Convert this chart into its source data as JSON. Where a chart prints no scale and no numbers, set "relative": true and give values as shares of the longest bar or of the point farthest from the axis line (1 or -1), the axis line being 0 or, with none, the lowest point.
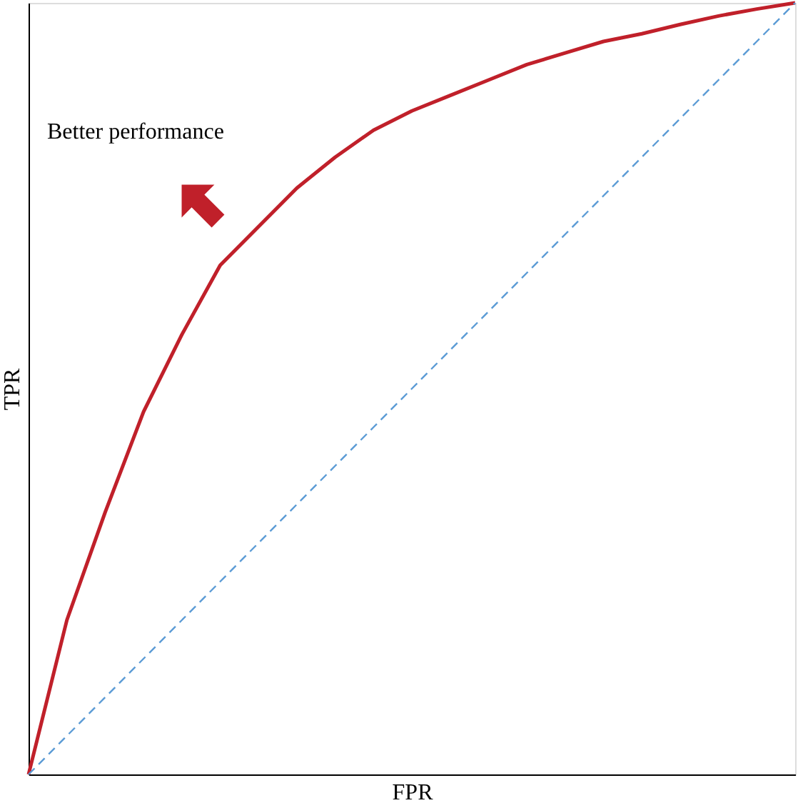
{
  "chart_data": {
    "type": "line",
    "relative": true,
    "xlabel": "FPR",
    "ylabel": "TPR",
    "categories": [
      null,
      null,
      null,
      null,
      null,
      null,
      null,
      null,
      null,
      null,
      null,
      null,
      null,
      null,
      null,
      null,
      null,
      null,
      null,
      null,
      null
    ],
    "series": [
      {
        "color": "#c0202a",
        "line_style": "solid",
        "values": [
          0,
          0.2,
          0.34,
          0.47,
          0.57,
          0.66,
          0.71,
          0.76,
          0.8,
          0.835,
          0.86,
          0.88,
          0.9,
          0.92,
          0.935,
          0.95,
          0.96,
          0.972,
          0.983,
          0.992,
          1
        ]
      },
      {
        "color": "#5b9bd5",
        "line_style": "dashed",
        "values": [
          0,
          0.05,
          0.1,
          0.15,
          0.2,
          0.25,
          0.3,
          0.35,
          0.4,
          0.45,
          0.5,
          0.55,
          0.6,
          0.65,
          0.7,
          0.75,
          0.8,
          0.85,
          0.9,
          0.95,
          1
        ]
      }
    ],
    "annotations": [
      "Better performance"
    ],
    "marker": "none"
  }
}
